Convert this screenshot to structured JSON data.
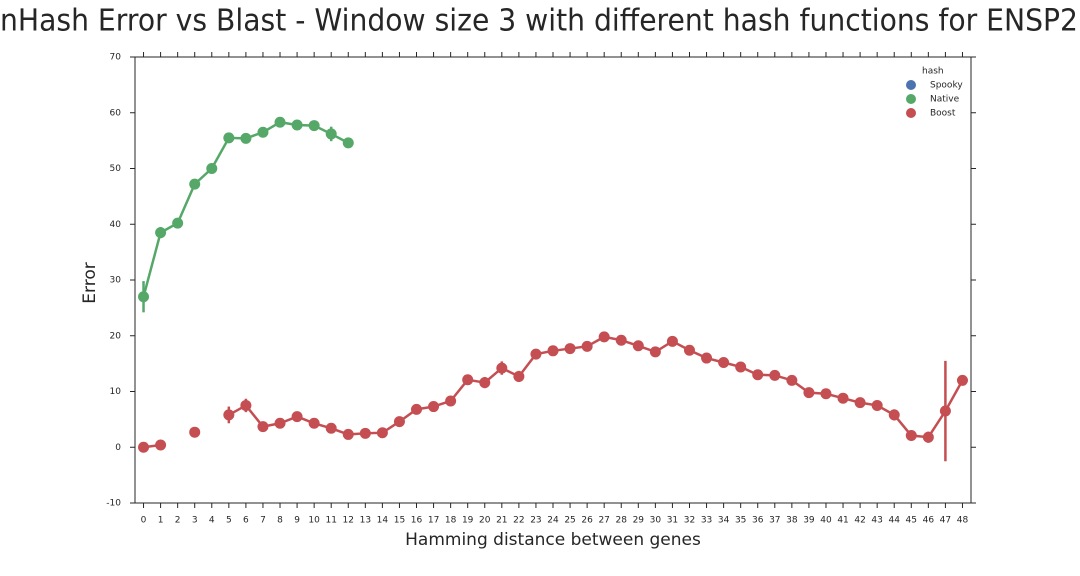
{
  "chart_data": {
    "type": "line",
    "title": "nHash Error vs Blast - Window size 3 with different hash functions for ENSP2",
    "xlabel": "Hamming distance between genes",
    "ylabel": "Error",
    "legend_title": "hash",
    "legend": "upper right",
    "categories": [
      0,
      1,
      2,
      3,
      4,
      5,
      6,
      7,
      8,
      9,
      10,
      11,
      12,
      13,
      14,
      15,
      16,
      17,
      18,
      19,
      20,
      21,
      22,
      23,
      24,
      25,
      26,
      27,
      28,
      29,
      30,
      31,
      32,
      33,
      34,
      35,
      36,
      37,
      38,
      39,
      40,
      41,
      42,
      43,
      44,
      45,
      46,
      47,
      48
    ],
    "ylim": [
      -10,
      70
    ],
    "yticks": [
      -10,
      0,
      10,
      20,
      30,
      40,
      50,
      60,
      70
    ],
    "series": [
      {
        "name": "Spooky",
        "color": "#4c72b0",
        "values": [
          null,
          null,
          null,
          null,
          null,
          null,
          null,
          null,
          null,
          null,
          null,
          null,
          null,
          null,
          null,
          null,
          null,
          null,
          null,
          null,
          null,
          null,
          null,
          null,
          null,
          null,
          null,
          null,
          null,
          null,
          null,
          null,
          null,
          null,
          null,
          null,
          null,
          null,
          null,
          null,
          null,
          null,
          null,
          null,
          null,
          null,
          null,
          null,
          null
        ],
        "errors": [
          null,
          null,
          null,
          null,
          null,
          null,
          null,
          null,
          null,
          null,
          null,
          null,
          null,
          null,
          null,
          null,
          null,
          null,
          null,
          null,
          null,
          null,
          null,
          null,
          null,
          null,
          null,
          null,
          null,
          null,
          null,
          null,
          null,
          null,
          null,
          null,
          null,
          null,
          null,
          null,
          null,
          null,
          null,
          null,
          null,
          null,
          null,
          null,
          null
        ]
      },
      {
        "name": "Native",
        "color": "#55a868",
        "values": [
          27,
          38.5,
          40.2,
          47.2,
          50,
          55.5,
          55.4,
          56.5,
          58.3,
          57.8,
          57.7,
          56.2,
          54.6,
          null,
          null,
          null,
          null,
          null,
          null,
          null,
          null,
          null,
          null,
          null,
          null,
          null,
          null,
          null,
          null,
          null,
          null,
          null,
          null,
          null,
          null,
          null,
          null,
          null,
          null,
          null,
          null,
          null,
          null,
          null,
          null,
          null,
          null,
          null,
          null
        ],
        "errors": [
          2.8,
          1,
          null,
          null,
          null,
          null,
          null,
          null,
          null,
          null,
          0.8,
          1.3,
          null,
          null,
          null,
          null,
          null,
          null,
          null,
          null,
          null,
          null,
          null,
          null,
          null,
          null,
          null,
          null,
          null,
          null,
          null,
          null,
          null,
          null,
          null,
          null,
          null,
          null,
          null,
          null,
          null,
          null,
          null,
          null,
          null,
          null,
          null,
          null,
          null
        ]
      },
      {
        "name": "Boost",
        "color": "#c44e52",
        "values": [
          0,
          0.4,
          null,
          2.7,
          null,
          5.8,
          7.5,
          3.7,
          4.3,
          5.5,
          4.3,
          3.4,
          2.3,
          2.5,
          2.6,
          4.6,
          6.8,
          7.3,
          8.3,
          12.1,
          11.6,
          14.2,
          12.7,
          16.7,
          17.3,
          17.7,
          18.1,
          19.8,
          19.2,
          18.2,
          17.1,
          19,
          17.4,
          16,
          15.2,
          14.4,
          13,
          12.9,
          12,
          9.8,
          9.6,
          8.8,
          8,
          7.5,
          5.8,
          2.1,
          1.8,
          6.5,
          12
        ],
        "errors": [
          null,
          null,
          null,
          null,
          null,
          1.5,
          1.2,
          null,
          null,
          0.5,
          null,
          null,
          null,
          null,
          null,
          null,
          null,
          null,
          null,
          null,
          1,
          1.2,
          1,
          null,
          null,
          null,
          null,
          null,
          null,
          null,
          null,
          null,
          null,
          null,
          null,
          null,
          null,
          null,
          null,
          null,
          null,
          null,
          null,
          null,
          1,
          null,
          1,
          9,
          null
        ]
      }
    ]
  }
}
